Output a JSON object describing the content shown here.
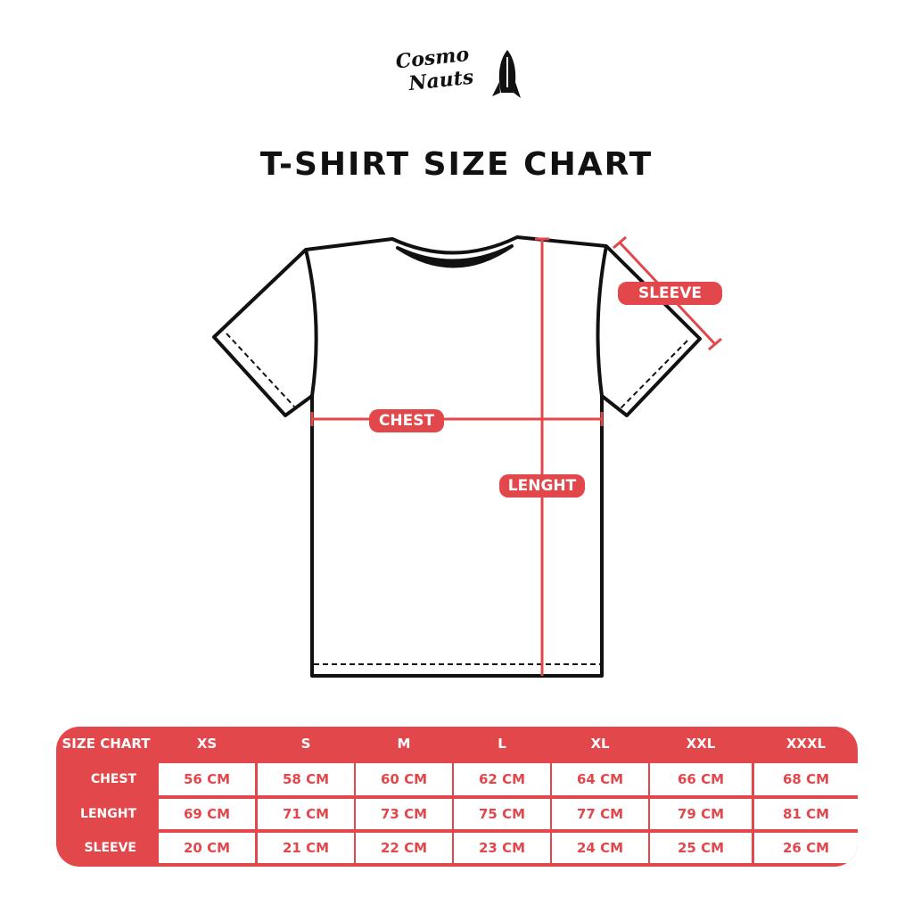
{
  "brand": {
    "logo_text": "Cosmo Nauts",
    "logo_icon": "rocket-icon"
  },
  "title": "T-SHIRT SIZE CHART",
  "colors": {
    "accent": "#e2474b",
    "outline": "#111111"
  },
  "diagram": {
    "labels": {
      "sleeve": "SLEEVE",
      "chest": "CHEST",
      "length": "LENGHT"
    }
  },
  "table": {
    "corner": "SIZE CHART",
    "sizes": [
      "XS",
      "S",
      "M",
      "L",
      "XL",
      "XXL",
      "XXXL"
    ],
    "rows": [
      {
        "label": "CHEST",
        "values": [
          "56 CM",
          "58 CM",
          "60 CM",
          "62 CM",
          "64 CM",
          "66 CM",
          "68 CM"
        ]
      },
      {
        "label": "LENGHT",
        "values": [
          "69 CM",
          "71 CM",
          "73 CM",
          "75 CM",
          "77 CM",
          "79 CM",
          "81 CM"
        ]
      },
      {
        "label": "SLEEVE",
        "values": [
          "20 CM",
          "21 CM",
          "22 CM",
          "23 CM",
          "24 CM",
          "25 CM",
          "26 CM"
        ]
      }
    ]
  }
}
